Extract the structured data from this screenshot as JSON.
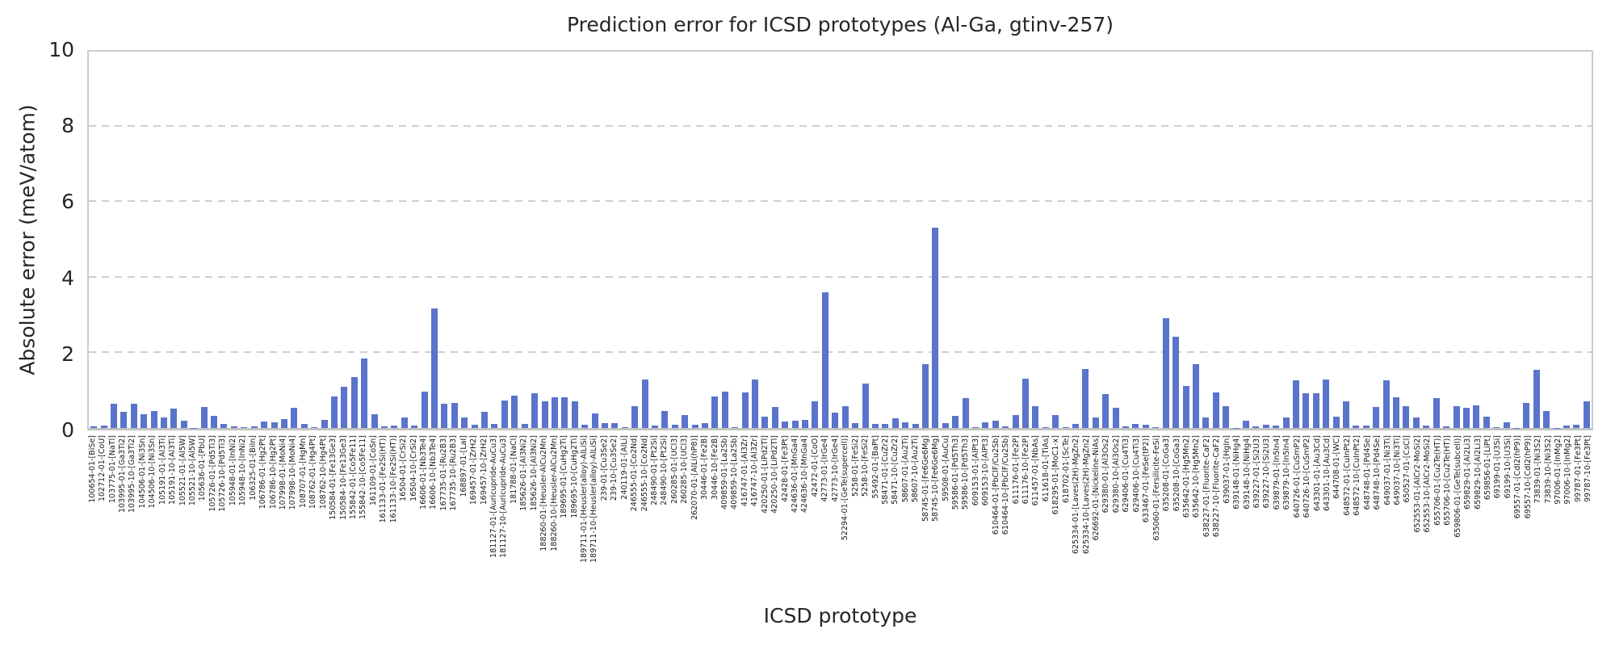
{
  "chart_data": {
    "type": "bar",
    "title": "Prediction error for ICSD prototypes (Al-Ga, gtinv-257)",
    "xlabel": "ICSD prototype",
    "ylabel": "Absolute error (meV/atom)",
    "ylim": [
      0,
      10
    ],
    "yticks": [
      0,
      2,
      4,
      6,
      8,
      10
    ],
    "grid": "horizontal dashed",
    "legend": "none",
    "bar_color": "#5a74cc",
    "categories": [
      "100654-01-[BiSe]",
      "102712-01-[CoU]",
      "103775-01-[NaTl]",
      "103995-01-[Ga3Ti2]",
      "103995-10-[Ga3Ti2]",
      "104506-01-[Ni3Sn]",
      "104506-10-[Ni3Sn]",
      "105191-01-[Al3Ti]",
      "105191-10-[Al3Ti]",
      "105521-01-[Al5W]",
      "105521-10-[Al5W]",
      "105636-01-[PbU]",
      "105726-01-[Pd5Ti3]",
      "105726-10-[Pd5Ti3]",
      "105948-01-[InNi2]",
      "105948-10-[InNi2]",
      "106325-01-[BiIn]",
      "106786-01-[Hg2Pt]",
      "106786-10-[Hg2Pt]",
      "107998-01-[MoNi4]",
      "107998-10-[MoNi4]",
      "108707-01-[HgMn]",
      "108762-01-[Hg4Pt]",
      "108762-10-[Hg4Pt]",
      "150584-01-[Fe13Ge3]",
      "150584-10-[Fe13Ge3]",
      "155842-01-[Co5Fe11]",
      "155842-10-[Co5Fe11]",
      "161109-01-[CoSn]",
      "161133-01-[Fe2Si(HT)]",
      "161133-10-[Fe2Si(HT)]",
      "16504-01-[CrSi2]",
      "16504-10-[CrSi2]",
      "16606-01-[Nb3Te4]",
      "16606-10-[Nb3Te4]",
      "167735-01-[Ru2B3]",
      "167735-10-[Ru2B3]",
      "168897-01-[LaI]",
      "169457-01-[ZrH2]",
      "169457-10-[ZrH2]",
      "181127-01-[Auricupride-AuCu3]",
      "181127-10-[Auricupride-AuCu3]",
      "181788-01-[NaCl]",
      "185626-01-[Al3Ni2]",
      "185626-10-[Al3Ni2]",
      "188260-01-[Heusler-AlCu2Mn]",
      "188260-10-[Heusler-AlCu2Mn]",
      "189695-01-[CuHg2Ti]",
      "189695-10-[CuHg2Ti]",
      "189711-01-[Heusler(alloy)-AlLiSi]",
      "189711-10-[Heusler(alloy)-AlLiSi]",
      "239-01-[Cu3Se2]",
      "239-10-[Cu3Se2]",
      "240119-01-[AlLi]",
      "246555-01-[Co2Nd]",
      "246555-10-[Co2Nd]",
      "248490-01-[Pt2Si]",
      "248490-10-[Pt2Si]",
      "260285-01-[UCl3]",
      "260285-10-[UCl3]",
      "262070-01-[AlLi(hP8)]",
      "30446-01-[Fe2B]",
      "30446-10-[Fe2B]",
      "409859-01-[La2Sb]",
      "409859-10-[La2Sb]",
      "416747-01-[Al3Zr]",
      "416747-10-[Al3Zr]",
      "420250-01-[LiPd2Tl]",
      "420250-10-[LiPd2Tl]",
      "42428-01-[Fe3Pt]",
      "424636-01-[MnGa4]",
      "424636-10-[MnGa4]",
      "42472-01-[CoO]",
      "42773-01-[IrGe4]",
      "42773-10-[IrGe4]",
      "52294-01-[GeTe(supercell)]",
      "5258-01-[FeSi2]",
      "5258-10-[FeSi2]",
      "55492-01-[BaPt]",
      "58471-01-[CuZr2]",
      "58471-10-[CuZr2]",
      "58607-01-[Au2Ti]",
      "58607-10-[Au2Ti]",
      "58745-01-[Fe6Ge6Mg]",
      "58745-10-[Fe6Ge6Mg]",
      "59508-01-[AuCu]",
      "59586-01-[Pd5Th3]",
      "59586-10-[Pd5Th3]",
      "609153-01-[AlPt3]",
      "609153-10-[AlPt3]",
      "610464-01-[PbClF/Cu2Sb]",
      "610464-10-[PbClF/Cu2Sb]",
      "611176-01-[Fe2P]",
      "611176-10-[Fe2P]",
      "611457-01-[NbAs]",
      "611618-01-[TiAs]",
      "618295-01-[MoC1-x]",
      "618702-01-[ScTe]",
      "625334-01-[Laves(2H)-MgZn2]",
      "625334-10-[Laves(2H)-MgZn2]",
      "626692-01-[Nickeline-NiAs]",
      "629380-01-[Al3Os2]",
      "629380-10-[Al3Os2]",
      "629406-01-[Cu4Ti3]",
      "629406-10-[Cu4Ti3]",
      "633467-01-[FeSe(tP2)]",
      "635060-01-[Fersilicite-FeSi]",
      "635208-01-[CoGa3]",
      "635208-10-[CoGa3]",
      "635642-01-[Hg5Mn2]",
      "635642-10-[Hg5Mn2]",
      "638227-01-[Fluorite-CaF2]",
      "638227-10-[Fluorite-CaF2]",
      "639037-01-[HgIn]",
      "639148-01-[NiHg4]",
      "639148-10-[NiHg4]",
      "639227-01-[Si2U3]",
      "639227-10-[Si2U3]",
      "639879-01-[In5In4]",
      "639879-10-[In5In4]",
      "640726-01-[CuSmP2]",
      "640726-10-[CuSmP2]",
      "643301-01-[Au3Cd]",
      "643301-10-[Au3Cd]",
      "644708-01-[WC]",
      "648572-01-[CuInPt2]",
      "648572-10-[CuInPt2]",
      "648748-01-[Pd4Se]",
      "648748-10-[Pd4Se]",
      "649037-01-[Ni3Ti]",
      "649037-10-[Ni3Ti]",
      "650527-01-[CsCl]",
      "652553-01-[AlCr2-MoSi2]",
      "652553-10-[AlCr2-MoSi2]",
      "655706-01-[Cu2Te(HT)]",
      "655706-10-[Cu2Te(HT)]",
      "659806-01-[GeTe(subcell)]",
      "659829-01-[Al2Li3]",
      "659829-10-[Al2Li3]",
      "659856-01-[LiPt]",
      "69199-01-[U3Si]",
      "69199-10-[U3Si]",
      "69557-01-[CdI2(hP9)]",
      "69557-10-[CdI2(hP9)]",
      "73839-01-[Ni3S2]",
      "73839-10-[Ni3S2]",
      "97006-01-[InMg2]",
      "97006-10-[InMg2]",
      "99787-01-[Fe3Pt]",
      "99787-10-[Fe3Pt]"
    ],
    "values": [
      0.04,
      0.06,
      0.65,
      0.42,
      0.65,
      0.36,
      0.45,
      0.28,
      0.52,
      0.2,
      0.01,
      0.55,
      0.32,
      0.11,
      0.05,
      0.03,
      0.05,
      0.17,
      0.15,
      0.24,
      0.53,
      0.11,
      0.02,
      0.22,
      0.83,
      1.1,
      1.35,
      1.85,
      0.37,
      0.04,
      0.07,
      0.27,
      0.06,
      0.96,
      3.16,
      0.64,
      0.67,
      0.28,
      0.08,
      0.43,
      0.11,
      0.72,
      0.85,
      0.11,
      0.93,
      0.7,
      0.82,
      0.82,
      0.7,
      0.09,
      0.38,
      0.12,
      0.12,
      0.02,
      0.57,
      1.28,
      0.07,
      0.46,
      0.09,
      0.35,
      0.08,
      0.13,
      0.83,
      0.97,
      0.02,
      0.95,
      1.28,
      0.3,
      0.55,
      0.18,
      0.19,
      0.21,
      0.71,
      3.6,
      0.4,
      0.58,
      0.12,
      1.17,
      0.11,
      0.1,
      0.26,
      0.14,
      0.1,
      1.7,
      5.31,
      0.13,
      0.32,
      0.8,
      0.02,
      0.16,
      0.2,
      0.05,
      0.35,
      1.3,
      0.57,
      0.03,
      0.35,
      0.03,
      0.1,
      1.56,
      0.27,
      0.89,
      0.53,
      0.04,
      0.1,
      0.08,
      0.02,
      2.91,
      2.43,
      1.11,
      1.69,
      0.27,
      0.94,
      0.57,
      0.01,
      0.19,
      0.04,
      0.08,
      0.07,
      0.28,
      1.26,
      0.93,
      0.92,
      1.28,
      0.3,
      0.71,
      0.07,
      0.07,
      0.55,
      1.26,
      0.82,
      0.57,
      0.27,
      0.06,
      0.8,
      0.04,
      0.57,
      0.53,
      0.6,
      0.3,
      0.02,
      0.15,
      0.01,
      0.66,
      1.55,
      0.45,
      0.01,
      0.07,
      0.08,
      0.71
    ]
  }
}
